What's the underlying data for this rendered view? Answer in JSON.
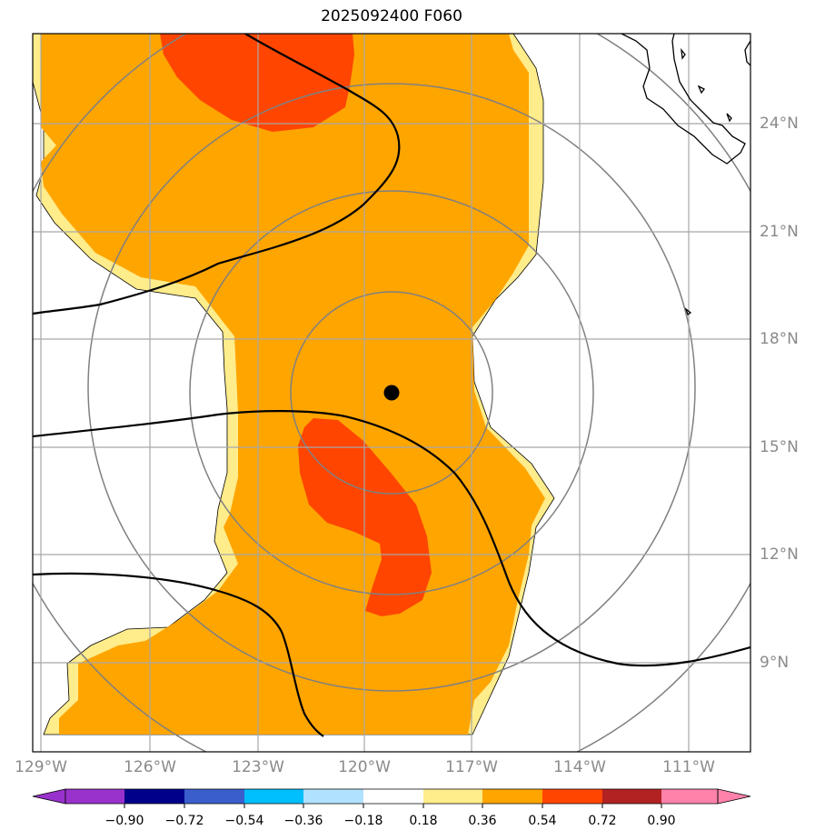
{
  "title": "2025092400 F060",
  "latitude_labels": [
    "24°N",
    "21°N",
    "18°N",
    "15°N",
    "12°N",
    "9°N"
  ],
  "longitude_labels": [
    "129°W",
    "126°W",
    "123°W",
    "120°W",
    "117°W",
    "114°W",
    "111°W"
  ],
  "storm_center": {
    "lat": 16.5,
    "lon": "119.2°W"
  },
  "colorbar": {
    "tick_labels": [
      "−0.90",
      "−0.72",
      "−0.54",
      "−0.36",
      "−0.18",
      "0.18",
      "0.36",
      "0.54",
      "0.72",
      "0.90"
    ],
    "colors": [
      "#9932cc",
      "#00008b",
      "#3a5fcd",
      "#00bfff",
      "#b0e2ff",
      "#ffffff",
      "#ffec8b",
      "#ffa500",
      "#ff4500",
      "#b22222",
      "#ff82ab"
    ]
  },
  "field_colors": {
    "light_yellow": "#ffec8b",
    "orange": "#ffa500",
    "red_orange": "#ff4500"
  }
}
